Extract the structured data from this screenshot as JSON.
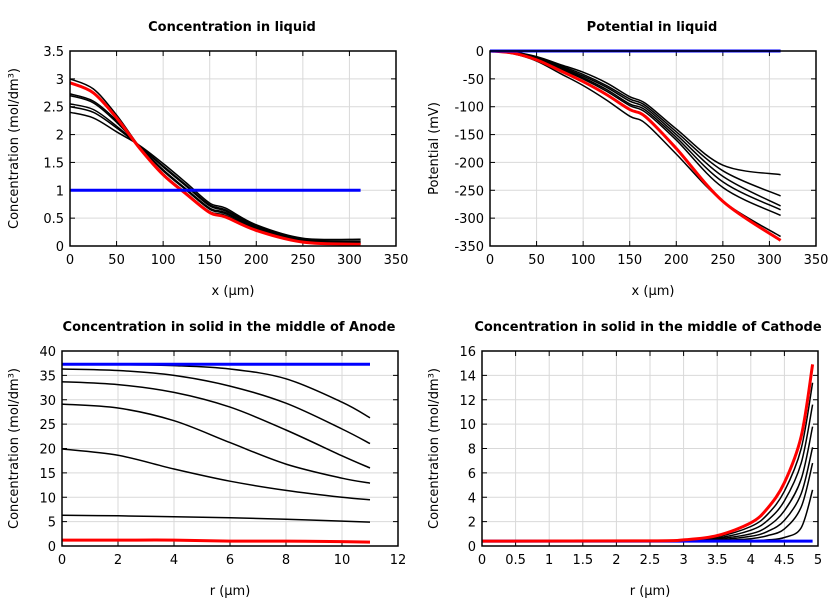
{
  "chart_data": [
    {
      "type": "line",
      "title": "Concentration in liquid",
      "xlabel": "x (µm)",
      "ylabel": "Concentration (mol/dm³)",
      "xlim": [
        0,
        350
      ],
      "ylim": [
        0,
        3.5
      ],
      "xticks": [
        "0",
        "50",
        "100",
        "150",
        "200",
        "250",
        "300",
        "350"
      ],
      "yticks": [
        "0",
        "0.5",
        "1",
        "1.5",
        "2",
        "2.5",
        "3",
        "3.5"
      ],
      "grid": true,
      "x": [
        0,
        25,
        50,
        75,
        100,
        125,
        150,
        167,
        200,
        250,
        312
      ],
      "series": [
        {
          "color": "#000000",
          "values": [
            3.0,
            2.82,
            2.35,
            1.77,
            1.3,
            0.95,
            0.62,
            0.55,
            0.3,
            0.08,
            0.03
          ]
        },
        {
          "color": "#000000",
          "values": [
            2.73,
            2.6,
            2.25,
            1.78,
            1.35,
            1.0,
            0.66,
            0.58,
            0.32,
            0.09,
            0.05
          ]
        },
        {
          "color": "#000000",
          "values": [
            2.7,
            2.57,
            2.22,
            1.78,
            1.37,
            1.02,
            0.68,
            0.6,
            0.33,
            0.1,
            0.06
          ]
        },
        {
          "color": "#000000",
          "values": [
            2.55,
            2.45,
            2.15,
            1.79,
            1.42,
            1.07,
            0.72,
            0.63,
            0.35,
            0.11,
            0.08
          ]
        },
        {
          "color": "#000000",
          "values": [
            2.5,
            2.4,
            2.12,
            1.79,
            1.44,
            1.09,
            0.74,
            0.65,
            0.36,
            0.12,
            0.09
          ]
        },
        {
          "color": "#000000",
          "values": [
            2.4,
            2.3,
            2.05,
            1.8,
            1.48,
            1.13,
            0.77,
            0.68,
            0.38,
            0.14,
            0.12
          ]
        },
        {
          "color": "#ff0000",
          "values": [
            2.93,
            2.75,
            2.3,
            1.75,
            1.28,
            0.93,
            0.6,
            0.52,
            0.28,
            0.07,
            0.03
          ]
        },
        {
          "color": "#0000ff",
          "values": [
            1,
            1,
            1,
            1,
            1,
            1,
            1,
            1,
            1,
            1,
            1
          ]
        }
      ]
    },
    {
      "type": "line",
      "title": "Potential in liquid",
      "xlabel": "x (µm)",
      "ylabel": "Potential (mV)",
      "xlim": [
        0,
        350
      ],
      "ylim": [
        -350,
        0
      ],
      "xticks": [
        "0",
        "50",
        "100",
        "150",
        "200",
        "250",
        "300",
        "350"
      ],
      "yticks": [
        "-350",
        "-300",
        "-250",
        "-200",
        "-150",
        "-100",
        "-50",
        "0"
      ],
      "grid": true,
      "x": [
        0,
        25,
        50,
        75,
        100,
        125,
        150,
        167,
        200,
        250,
        312
      ],
      "series": [
        {
          "color": "#000000",
          "values": [
            0,
            -5,
            -18,
            -40,
            -62,
            -88,
            -117,
            -130,
            -185,
            -270,
            -333
          ]
        },
        {
          "color": "#000000",
          "values": [
            0,
            -3,
            -14,
            -32,
            -50,
            -72,
            -98,
            -110,
            -160,
            -245,
            -295
          ]
        },
        {
          "color": "#000000",
          "values": [
            0,
            -3,
            -13,
            -30,
            -48,
            -69,
            -95,
            -106,
            -155,
            -235,
            -285
          ]
        },
        {
          "color": "#000000",
          "values": [
            0,
            -3,
            -12,
            -28,
            -45,
            -65,
            -90,
            -102,
            -150,
            -225,
            -278
          ]
        },
        {
          "color": "#000000",
          "values": [
            0,
            -2,
            -11,
            -26,
            -42,
            -62,
            -86,
            -98,
            -145,
            -215,
            -260
          ]
        },
        {
          "color": "#000000",
          "values": [
            0,
            -2,
            -10,
            -24,
            -38,
            -57,
            -82,
            -94,
            -140,
            -205,
            -222
          ]
        },
        {
          "color": "#ff0000",
          "values": [
            0,
            -4,
            -16,
            -35,
            -55,
            -78,
            -105,
            -118,
            -175,
            -270,
            -340
          ]
        },
        {
          "color": "#0000ff",
          "values": [
            0,
            0,
            0,
            0,
            0,
            0,
            0,
            0,
            0,
            0,
            0
          ]
        }
      ]
    },
    {
      "type": "line",
      "title": "Concentration in solid in the middle of Anode",
      "xlabel": "r (µm)",
      "ylabel": "Concentration (mol/dm³)",
      "xlim": [
        0,
        12
      ],
      "ylim": [
        0,
        40
      ],
      "xticks": [
        "0",
        "2",
        "4",
        "6",
        "8",
        "10",
        "12"
      ],
      "yticks": [
        "0",
        "5",
        "10",
        "15",
        "20",
        "25",
        "30",
        "35",
        "40"
      ],
      "grid": true,
      "x": [
        0,
        2,
        4,
        6,
        8,
        10,
        11
      ],
      "series": [
        {
          "color": "#000000",
          "values": [
            37.3,
            37.2,
            37.0,
            36.3,
            34.3,
            29.5,
            26.3
          ]
        },
        {
          "color": "#000000",
          "values": [
            36.3,
            36.0,
            35.0,
            32.8,
            29.3,
            24.0,
            21.0
          ]
        },
        {
          "color": "#000000",
          "values": [
            33.7,
            33.1,
            31.5,
            28.5,
            23.8,
            18.5,
            16.0
          ]
        },
        {
          "color": "#000000",
          "values": [
            29.1,
            28.3,
            25.7,
            21.2,
            16.8,
            13.9,
            12.9
          ]
        },
        {
          "color": "#000000",
          "values": [
            19.9,
            18.6,
            15.8,
            13.3,
            11.4,
            10.0,
            9.5
          ]
        },
        {
          "color": "#000000",
          "values": [
            6.3,
            6.2,
            6.0,
            5.8,
            5.5,
            5.1,
            4.9
          ]
        },
        {
          "color": "#ff0000",
          "values": [
            1.2,
            1.2,
            1.2,
            1.0,
            1.0,
            0.9,
            0.8
          ]
        },
        {
          "color": "#0000ff",
          "values": [
            37.3,
            37.3,
            37.3,
            37.3,
            37.3,
            37.3,
            37.3
          ]
        }
      ]
    },
    {
      "type": "line",
      "title": "Concentration in solid in the middle of Cathode",
      "xlabel": "r (µm)",
      "ylabel": "Concentration (mol/dm³)",
      "xlim": [
        0,
        5
      ],
      "ylim": [
        0,
        16
      ],
      "xticks": [
        "0",
        "0.5",
        "1",
        "1.5",
        "2",
        "2.5",
        "3",
        "3.5",
        "4",
        "4.5",
        "5"
      ],
      "yticks": [
        "0",
        "2",
        "4",
        "6",
        "8",
        "10",
        "12",
        "14",
        "16"
      ],
      "grid": true,
      "x": [
        0,
        2.5,
        3,
        3.5,
        4,
        4.25,
        4.5,
        4.75,
        4.92
      ],
      "series": [
        {
          "color": "#000000",
          "values": [
            0.4,
            0.4,
            0.47,
            0.75,
            1.6,
            2.6,
            4.5,
            8.0,
            13.4
          ]
        },
        {
          "color": "#000000",
          "values": [
            0.4,
            0.4,
            0.45,
            0.65,
            1.3,
            2.1,
            3.7,
            6.8,
            11.6
          ]
        },
        {
          "color": "#000000",
          "values": [
            0.4,
            0.4,
            0.43,
            0.58,
            1.0,
            1.6,
            2.9,
            5.5,
            9.8
          ]
        },
        {
          "color": "#000000",
          "values": [
            0.4,
            0.4,
            0.42,
            0.5,
            0.8,
            1.2,
            2.1,
            4.3,
            8.1
          ]
        },
        {
          "color": "#000000",
          "values": [
            0.4,
            0.4,
            0.41,
            0.45,
            0.6,
            0.85,
            1.4,
            3.2,
            6.8
          ]
        },
        {
          "color": "#000000",
          "values": [
            0.4,
            0.4,
            0.4,
            0.4,
            0.42,
            0.5,
            0.7,
            1.5,
            4.6
          ]
        },
        {
          "color": "#0000ff",
          "values": [
            0.4,
            0.4,
            0.4,
            0.4,
            0.4,
            0.4,
            0.4,
            0.4,
            0.4
          ]
        },
        {
          "color": "#ff0000",
          "values": [
            0.4,
            0.42,
            0.5,
            0.85,
            1.9,
            3.1,
            5.2,
            9.0,
            14.9
          ]
        }
      ]
    }
  ]
}
